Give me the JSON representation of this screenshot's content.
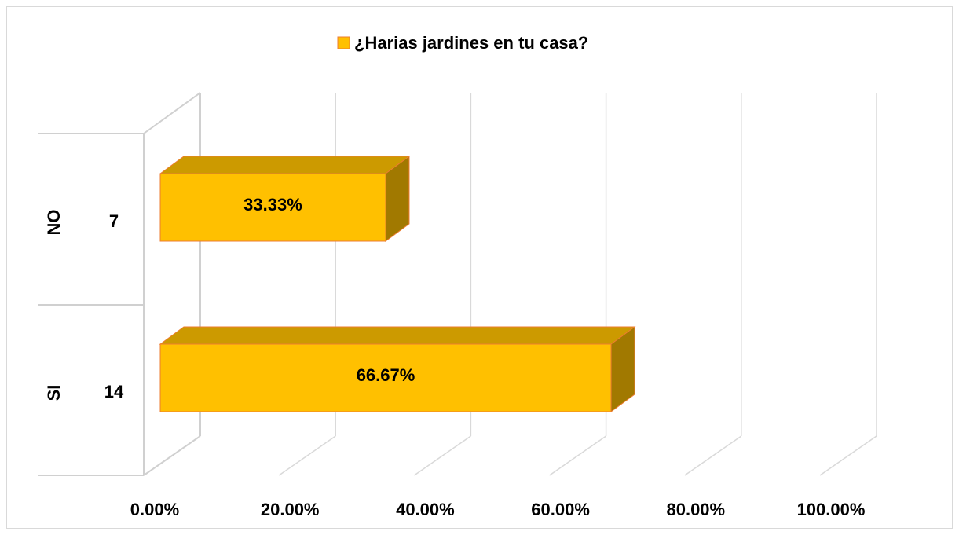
{
  "chart_data": {
    "type": "bar3d_horizontal",
    "categories": [
      "NO",
      "SI"
    ],
    "subcategories": [
      "7",
      "14"
    ],
    "series": [
      {
        "name": "¿Harias jardines en tu casa?",
        "color": "#FFC000",
        "values": [
          33.33,
          66.67
        ],
        "value_labels": [
          "33.33%",
          "66.67%"
        ]
      }
    ],
    "xlim": [
      0,
      100
    ],
    "xticks": [
      {
        "value": 0,
        "label": "0.00%"
      },
      {
        "value": 20,
        "label": "20.00%"
      },
      {
        "value": 40,
        "label": "40.00%"
      },
      {
        "value": 60,
        "label": "60.00%"
      },
      {
        "value": 80,
        "label": "80.00%"
      },
      {
        "value": 100,
        "label": "100.00%"
      }
    ],
    "grid": true,
    "legend": "top"
  }
}
